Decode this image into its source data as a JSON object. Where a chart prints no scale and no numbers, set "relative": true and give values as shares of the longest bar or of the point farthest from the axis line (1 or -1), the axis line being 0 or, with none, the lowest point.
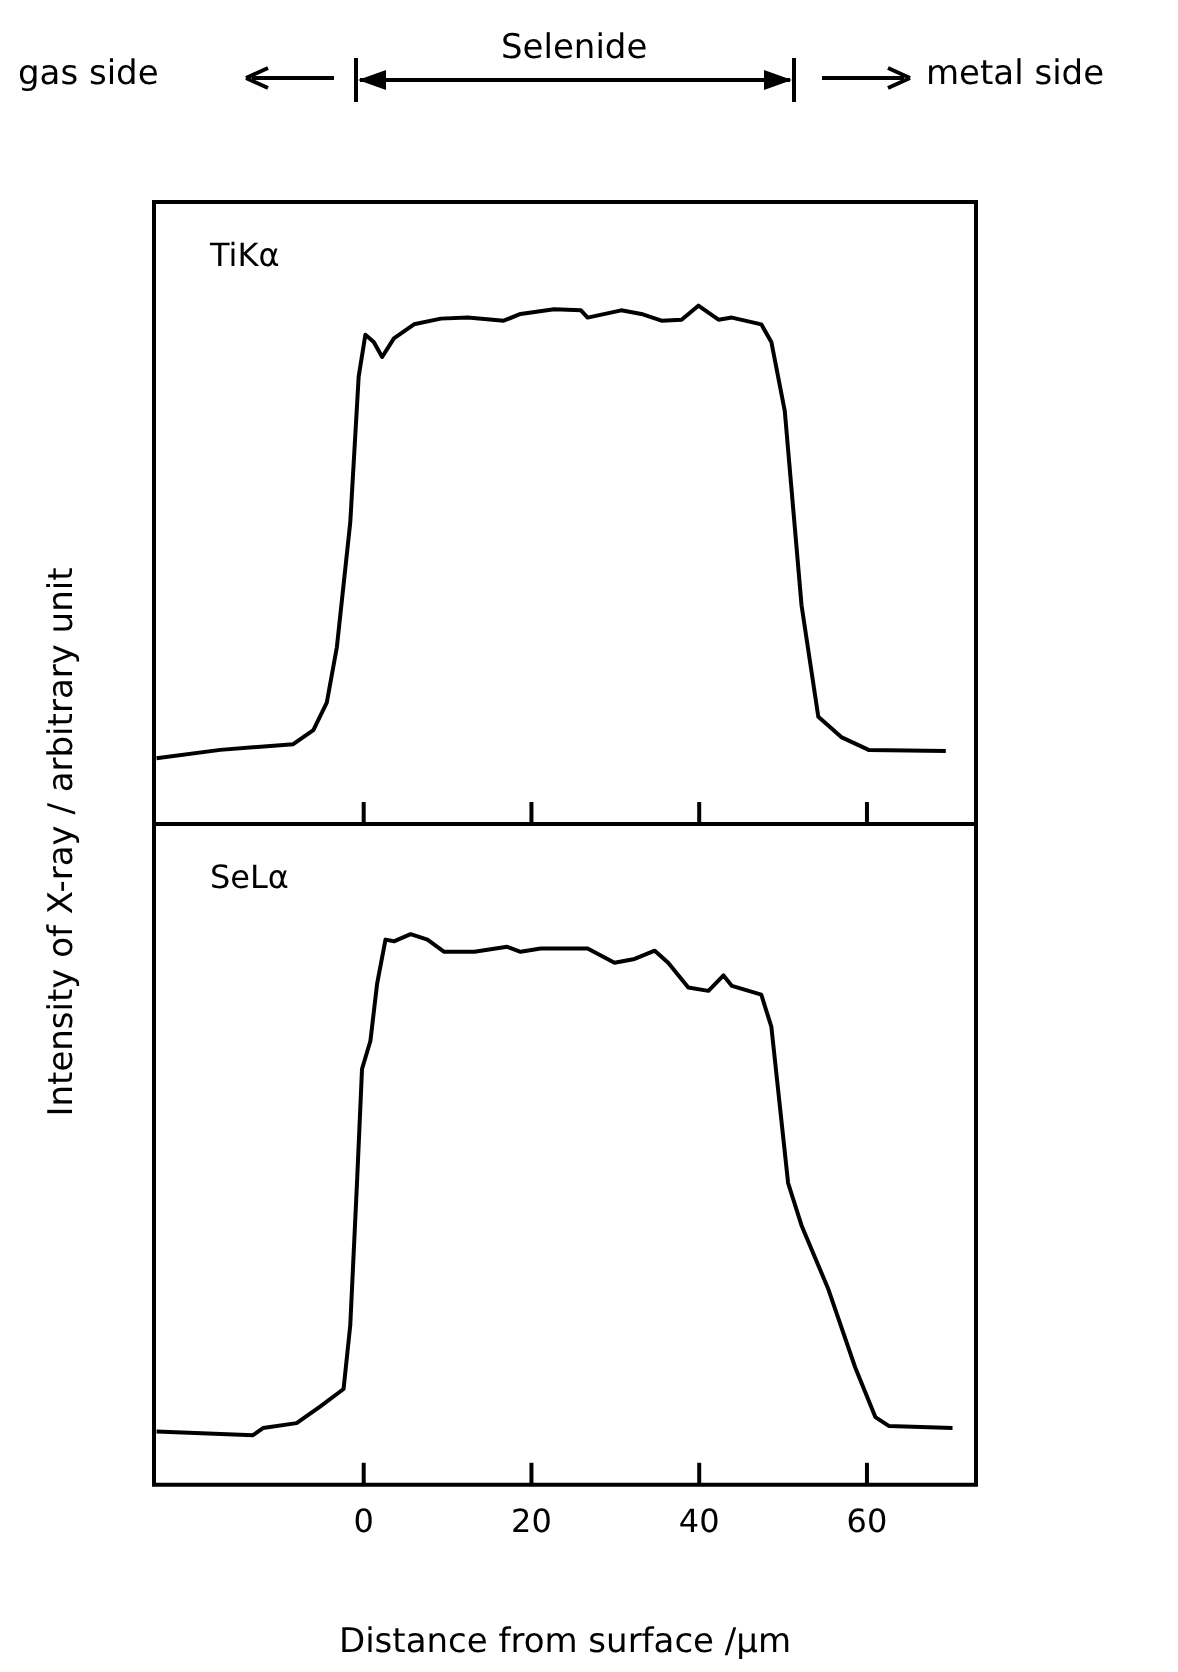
{
  "chart_data": [
    {
      "type": "line",
      "relative": true,
      "ylabel": "Intensity of X-ray / arbitrary unit",
      "xlim": [
        -25,
        73
      ],
      "xticks": [
        0,
        20,
        40,
        60
      ],
      "tick_labels": false,
      "marker": "none",
      "legend": false,
      "annotations": [
        "gas side",
        "Selenide",
        "metal side"
      ],
      "series": [
        {
          "name": "TiKα",
          "color": "#000000",
          "x": [
            -24.7,
            -17.1,
            -8.4,
            -6.0,
            -4.4,
            -3.2,
            -1.6,
            -0.6,
            0.2,
            1.2,
            2.2,
            3.6,
            6.0,
            9.2,
            12.4,
            16.7,
            18.7,
            22.7,
            25.9,
            26.7,
            30.7,
            33.1,
            35.5,
            37.9,
            39.9,
            42.3,
            43.9,
            47.4,
            48.6,
            50.2,
            52.2,
            54.2,
            57.0,
            60.2,
            69.4
          ],
          "values": [
            0.127,
            0.143,
            0.154,
            0.181,
            0.234,
            0.341,
            0.582,
            0.863,
            0.944,
            0.93,
            0.901,
            0.937,
            0.964,
            0.975,
            0.977,
            0.971,
            0.984,
            0.993,
            0.991,
            0.977,
            0.991,
            0.984,
            0.971,
            0.973,
            1.0,
            0.973,
            0.977,
            0.964,
            0.93,
            0.797,
            0.422,
            0.207,
            0.167,
            0.143,
            0.141
          ]
        }
      ]
    },
    {
      "type": "line",
      "relative": true,
      "xlabel": "Distance from surface /μm",
      "xlim": [
        -25,
        73
      ],
      "xticks": [
        0,
        20,
        40,
        60
      ],
      "tick_labels": "x",
      "marker": "none",
      "legend": false,
      "series": [
        {
          "name": "SeLα",
          "color": "#000000",
          "x": [
            -24.7,
            -13.2,
            -12.0,
            -8.0,
            -5.2,
            -2.4,
            -1.6,
            -0.8,
            -0.2,
            0.8,
            1.6,
            2.6,
            3.6,
            5.6,
            7.6,
            9.6,
            13.2,
            17.1,
            18.7,
            21.1,
            26.7,
            29.9,
            32.3,
            34.7,
            36.3,
            38.7,
            41.1,
            42.9,
            43.9,
            47.4,
            48.6,
            50.6,
            52.2,
            55.4,
            58.6,
            61.0,
            62.6,
            70.2
          ],
          "values": [
            0.097,
            0.09,
            0.103,
            0.112,
            0.142,
            0.174,
            0.29,
            0.548,
            0.755,
            0.806,
            0.91,
            0.99,
            0.987,
            1.0,
            0.99,
            0.968,
            0.968,
            0.977,
            0.968,
            0.974,
            0.974,
            0.948,
            0.955,
            0.97,
            0.948,
            0.903,
            0.897,
            0.925,
            0.906,
            0.89,
            0.832,
            0.548,
            0.471,
            0.355,
            0.213,
            0.123,
            0.107,
            0.103
          ]
        }
      ]
    }
  ]
}
